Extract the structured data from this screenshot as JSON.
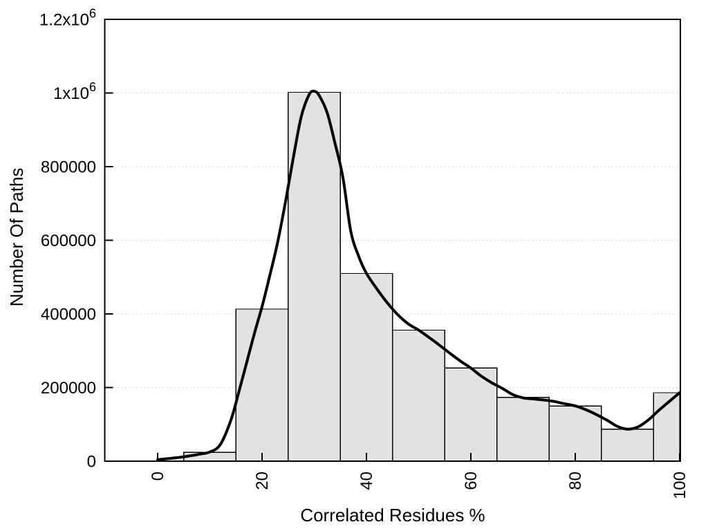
{
  "figure": {
    "background": "#ffffff",
    "bar_fill": "#e2e2e2",
    "bar_border": "#000000",
    "curve_color": "#000000",
    "grid_color": "#c9c9c9",
    "axis_color": "#000000"
  },
  "chart_data": {
    "type": "bar",
    "subtype": "histogram-with-density-curve",
    "title": "",
    "xlabel": "Correlated Residues %",
    "ylabel": "Number Of Paths",
    "xlim": [
      -10.2,
      100
    ],
    "ylim": [
      0,
      1200000
    ],
    "grid": "horizontal-dotted",
    "legend": "none",
    "bin_width": 10,
    "categories": [
      10,
      20,
      30,
      40,
      50,
      60,
      70,
      80,
      90,
      100
    ],
    "values": [
      24000,
      413000,
      1002000,
      510000,
      356000,
      253000,
      173000,
      150000,
      87000,
      186000
    ],
    "series": [
      {
        "name": "smoothed-density-curve",
        "x": [
          0,
          2,
          4,
          6,
          8,
          10,
          12,
          14,
          15.5,
          17,
          18.5,
          20,
          21.5,
          23,
          24.5,
          26,
          27.5,
          29,
          30,
          31,
          32.5,
          34,
          35.5,
          37,
          38.5,
          40,
          42,
          44,
          46,
          48,
          50,
          52,
          54,
          56,
          58,
          60,
          62,
          64,
          66,
          68,
          70,
          72,
          74,
          76,
          78,
          80,
          82,
          84,
          86,
          88,
          90,
          92,
          94,
          96,
          98,
          100
        ],
        "y": [
          4000,
          7000,
          10000,
          14000,
          19000,
          25000,
          45000,
          110000,
          185000,
          265000,
          345000,
          420000,
          505000,
          595000,
          705000,
          825000,
          935000,
          995000,
          1005000,
          992000,
          945000,
          862000,
          770000,
          625000,
          557000,
          510000,
          468000,
          430000,
          398000,
          373000,
          356000,
          336000,
          315000,
          293000,
          272000,
          253000,
          231000,
          213000,
          198000,
          181000,
          172000,
          169000,
          166000,
          162000,
          156000,
          150000,
          140000,
          127000,
          112000,
          95000,
          87000,
          93000,
          112000,
          138000,
          162000,
          186000
        ]
      }
    ],
    "x_ticks": [
      {
        "v": 0,
        "t": "0"
      },
      {
        "v": 20,
        "t": "20"
      },
      {
        "v": 40,
        "t": "40"
      },
      {
        "v": 60,
        "t": "60"
      },
      {
        "v": 80,
        "t": "80"
      },
      {
        "v": 100,
        "t": "100"
      }
    ],
    "y_ticks": [
      {
        "v": 0,
        "t": "0"
      },
      {
        "v": 200000,
        "t": "200000"
      },
      {
        "v": 400000,
        "t": "400000"
      },
      {
        "v": 600000,
        "t": "600000"
      },
      {
        "v": 800000,
        "t": "800000"
      },
      {
        "v": 1000000,
        "t": "1x10",
        "sup": "6"
      },
      {
        "v": 1200000,
        "t": "1.2x10",
        "sup": "6"
      }
    ]
  }
}
